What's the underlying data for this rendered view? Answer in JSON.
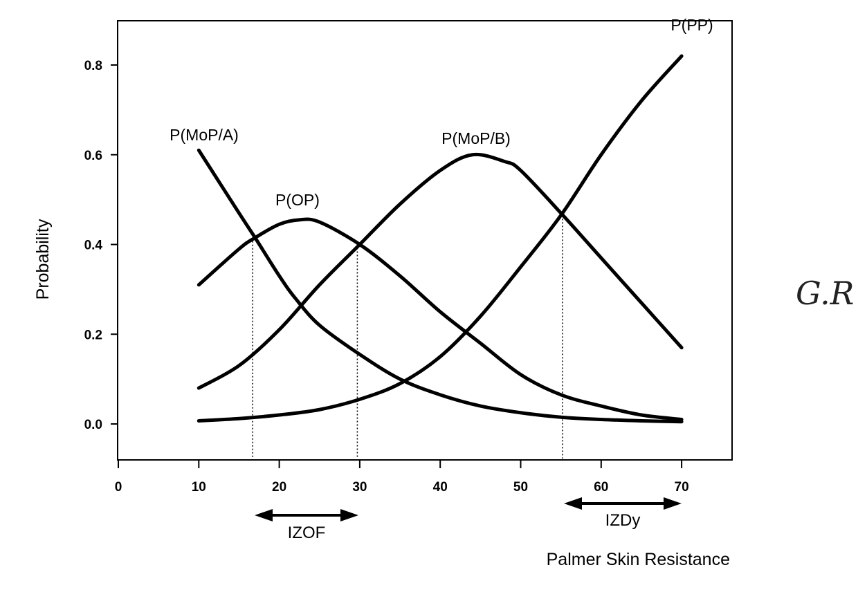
{
  "chart_data": {
    "type": "line",
    "title": "",
    "xlabel": "Palmer Skin Resistance",
    "ylabel": "Probability",
    "xlim": [
      0,
      76
    ],
    "ylim": [
      -0.08,
      0.9
    ],
    "x_ticks": [
      0,
      10,
      20,
      30,
      40,
      50,
      60,
      70
    ],
    "x_tick_labels": [
      "0",
      "10",
      "20",
      "30",
      "40",
      "50",
      "60",
      "70"
    ],
    "y_ticks": [
      0.0,
      0.2,
      0.4,
      0.6,
      0.8
    ],
    "y_tick_labels": [
      "0.0",
      "0.2",
      "0.4",
      "0.6",
      "0.8"
    ],
    "grid": false,
    "series": [
      {
        "name": "P(MoP/A)",
        "x": [
          10,
          15,
          17,
          20,
          22,
          25,
          30,
          35,
          40,
          45,
          50,
          55,
          60,
          65,
          70
        ],
        "values": [
          0.61,
          0.47,
          0.415,
          0.33,
          0.28,
          0.22,
          0.155,
          0.1,
          0.065,
          0.04,
          0.025,
          0.015,
          0.01,
          0.007,
          0.005
        ]
      },
      {
        "name": "P(OP)",
        "x": [
          10,
          15,
          17,
          20,
          22.5,
          25,
          30,
          35,
          40,
          45,
          50,
          55,
          60,
          65,
          70
        ],
        "values": [
          0.31,
          0.39,
          0.415,
          0.445,
          0.455,
          0.45,
          0.4,
          0.33,
          0.25,
          0.18,
          0.11,
          0.065,
          0.04,
          0.02,
          0.01
        ]
      },
      {
        "name": "P(MoP/B)",
        "x": [
          10,
          15,
          20,
          25,
          30,
          35,
          40,
          44,
          48,
          50,
          55,
          60,
          65,
          70
        ],
        "values": [
          0.08,
          0.13,
          0.21,
          0.31,
          0.4,
          0.49,
          0.565,
          0.6,
          0.585,
          0.565,
          0.47,
          0.37,
          0.27,
          0.17
        ]
      },
      {
        "name": "P(PP)",
        "x": [
          10,
          15,
          20,
          25,
          30,
          35,
          40,
          45,
          50,
          55,
          60,
          65,
          70
        ],
        "values": [
          0.007,
          0.012,
          0.02,
          0.032,
          0.055,
          0.09,
          0.15,
          0.24,
          0.35,
          0.465,
          0.6,
          0.72,
          0.82
        ]
      }
    ],
    "vertical_markers": [
      16.7,
      29.7,
      55.2
    ],
    "annotations": [
      {
        "text": "IZOF",
        "range": [
          17,
          30
        ]
      },
      {
        "text": "IZDy",
        "range": [
          56,
          70
        ]
      }
    ]
  },
  "handwritten_note": "G.R"
}
